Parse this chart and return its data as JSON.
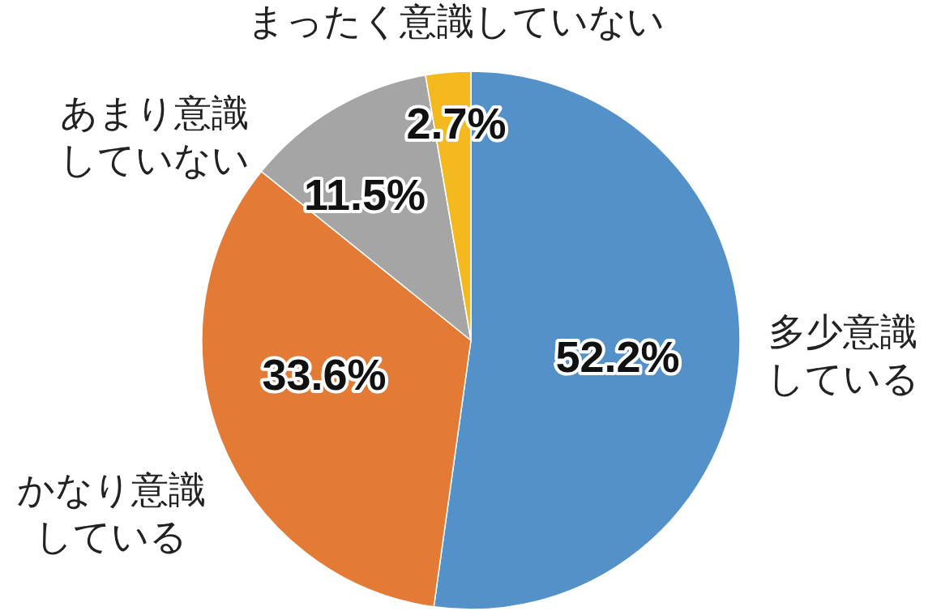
{
  "chart_data": {
    "type": "pie",
    "categories": [
      "多少意識している",
      "かなり意識している",
      "あまり意識していない",
      "まったく意識していない"
    ],
    "values": [
      52.2,
      33.6,
      11.5,
      2.7
    ],
    "colors": [
      "#5591c9",
      "#e37a35",
      "#a5a5a5",
      "#f4b91f"
    ],
    "value_labels": [
      "52.2%",
      "33.6%",
      "11.5%",
      "2.7%"
    ]
  }
}
